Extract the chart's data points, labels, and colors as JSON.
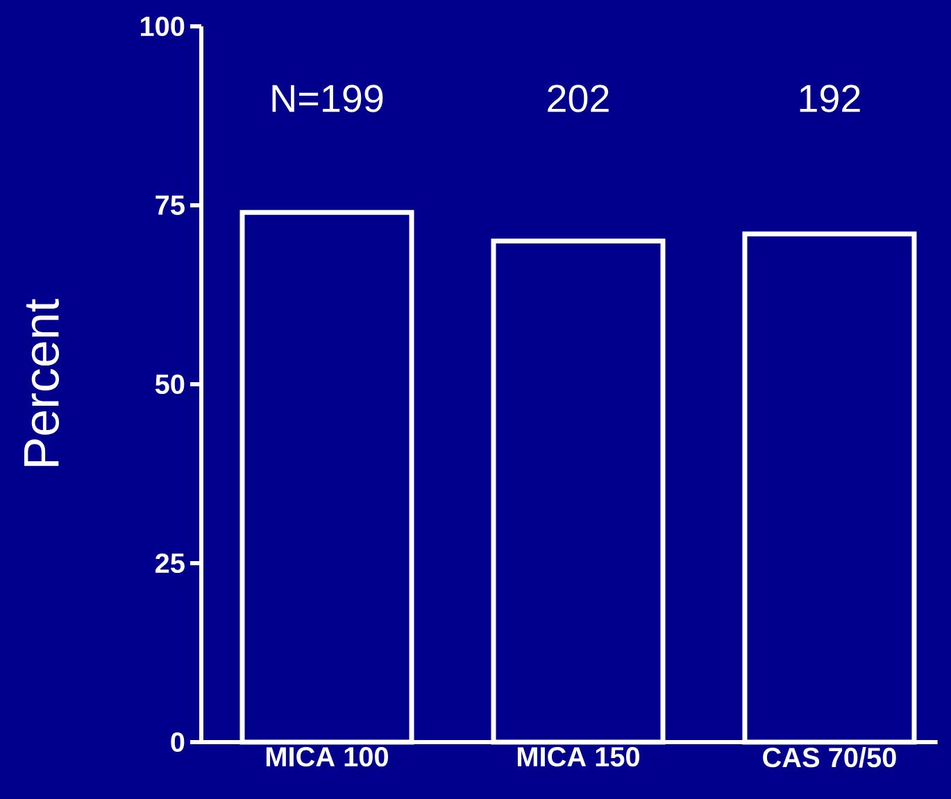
{
  "chart_data": {
    "type": "bar",
    "ylabel": "Percent",
    "categories": [
      "MICA 100",
      "MICA 150",
      "CAS 70/50"
    ],
    "values": [
      74,
      70,
      71
    ],
    "color": "#ffffff",
    "ylim": [
      0,
      100
    ],
    "yticks": [
      0,
      25,
      50,
      75,
      100
    ],
    "annotations": [
      "N=199",
      "202",
      "192"
    ]
  }
}
